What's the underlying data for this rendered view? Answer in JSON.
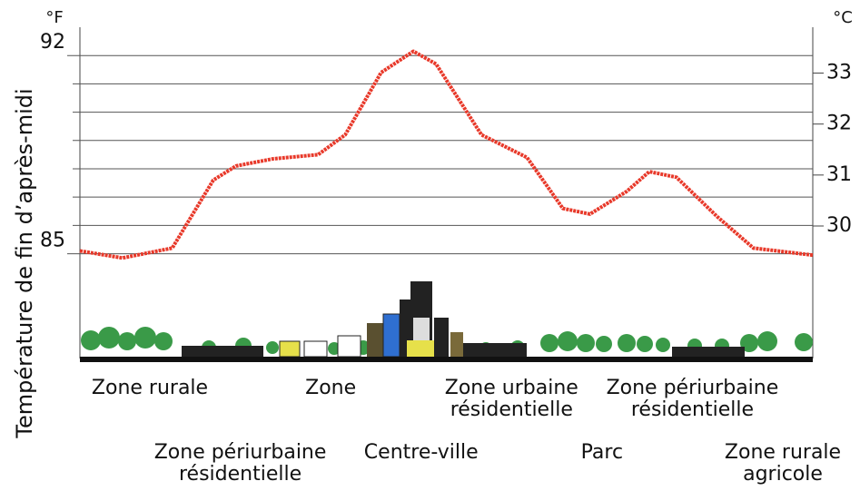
{
  "chart_data": {
    "type": "line",
    "y_label": "Température de fin d’après-midi",
    "y_unit": "°F",
    "y2_unit": "°C",
    "categories": [
      "Zone rurale",
      "Zone périurbaine\nrésidentielle",
      "Zone",
      "Centre-ville",
      "Zone urbaine\nrésidentielle",
      "Parc",
      "Zone périurbaine\nrésidentielle",
      "Zone rurale\nagricole"
    ],
    "x": [
      0,
      5.8,
      12.6,
      18.2,
      21.3,
      26.3,
      32.5,
      36.2,
      41.1,
      45.5,
      48.6,
      54.8,
      61,
      65.9,
      69.6,
      74.6,
      77.7,
      81.4,
      87,
      91.9,
      100
    ],
    "xlim": [
      0,
      100
    ],
    "series": [
      {
        "name": "Température",
        "color": "#e8392a",
        "values": [
          85.1,
          84.85,
          85.2,
          87.6,
          88.1,
          88.35,
          88.5,
          89.2,
          91.4,
          92.15,
          91.7,
          89.2,
          88.4,
          86.6,
          86.4,
          87.2,
          87.9,
          87.7,
          86.3,
          85.2,
          84.95
        ]
      }
    ],
    "ylim": [
      81.3,
      93
    ],
    "yticks": [
      85,
      92
    ],
    "minor_yticks": [
      86,
      87,
      88,
      89,
      90,
      91
    ],
    "y2lim": [
      27.4,
      33.9
    ],
    "y2ticks": [
      30,
      31,
      32,
      33
    ],
    "grid": true
  }
}
